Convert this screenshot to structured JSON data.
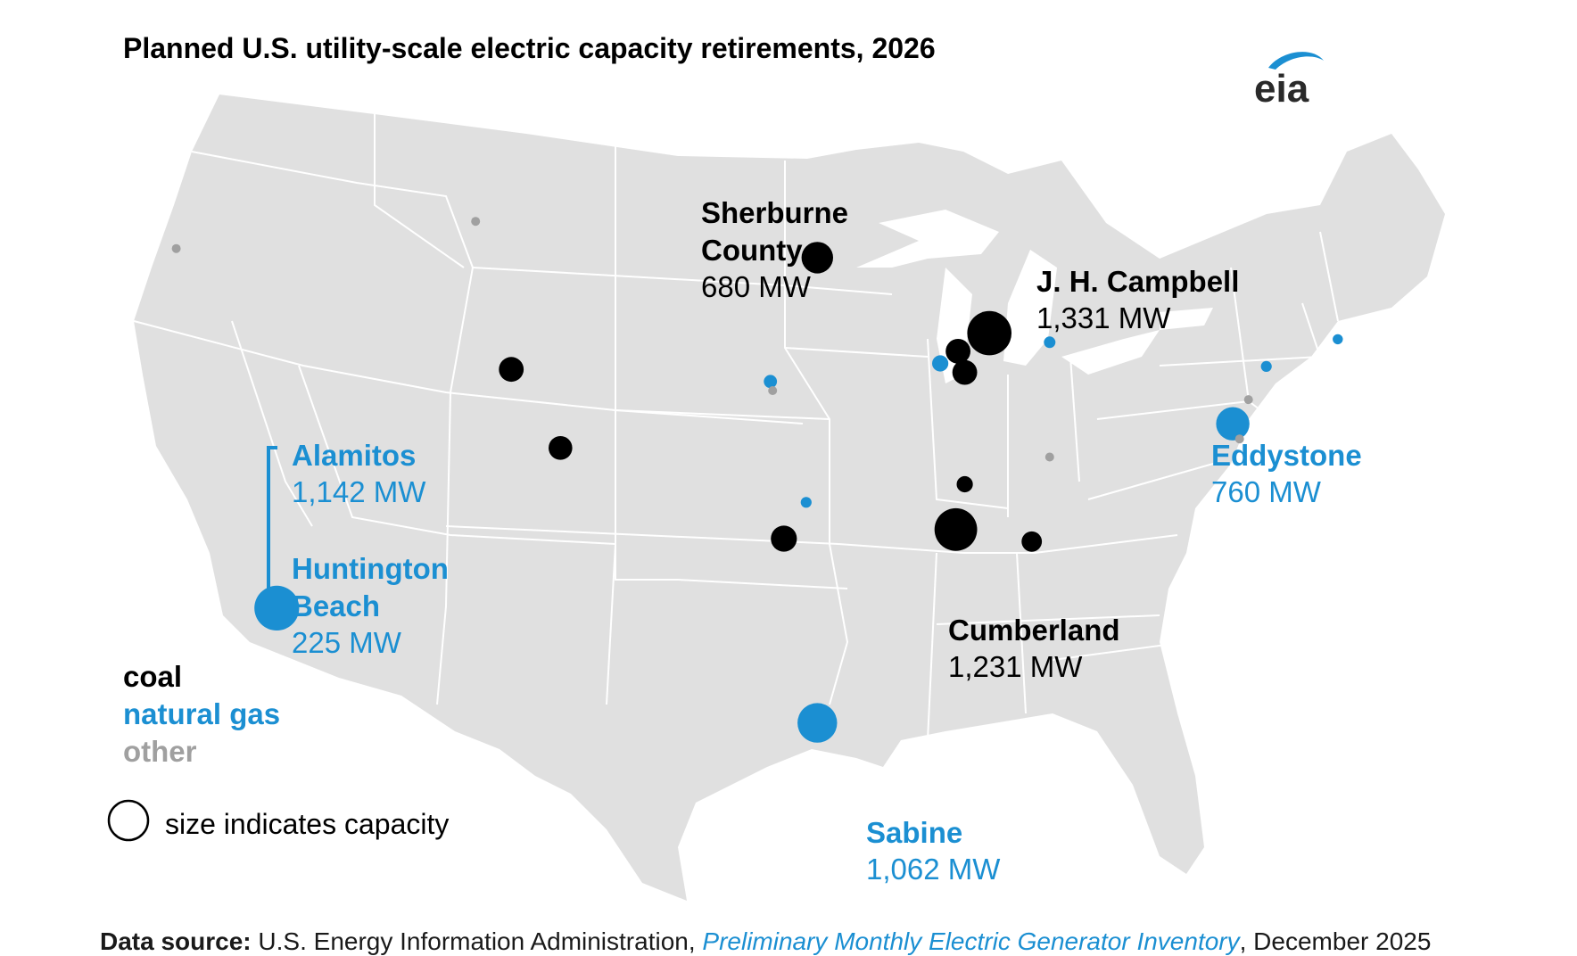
{
  "title": "Planned U.S. utility-scale electric capacity retirements, 2026",
  "logo_text": "eia",
  "colors": {
    "coal": "#000000",
    "natural_gas": "#1b8fd2",
    "other": "#a0a0a0",
    "land": "#e0e0e0",
    "borders": "#ffffff"
  },
  "labels": {
    "sherburne": {
      "name_line1": "Sherburne",
      "name_line2": "County",
      "capacity": "680 MW"
    },
    "campbell": {
      "name": "J. H. Campbell",
      "capacity": "1,331 MW"
    },
    "cumberland": {
      "name": "Cumberland",
      "capacity": "1,231 MW"
    },
    "eddystone": {
      "name": "Eddystone",
      "capacity": "760 MW"
    },
    "sabine": {
      "name": "Sabine",
      "capacity": "1,062 MW"
    },
    "alamitos": {
      "name": "Alamitos",
      "capacity": "1,142 MW"
    },
    "huntington": {
      "name_line1": "Huntington",
      "name_line2": "Beach",
      "capacity": "225 MW"
    }
  },
  "legend": {
    "coal": "coal",
    "natural_gas": "natural gas",
    "other": "other",
    "size_note": "size indicates capacity"
  },
  "source": {
    "label": "Data source:",
    "text_before": "U.S. Energy Information Administration,",
    "link": "Preliminary Monthly Electric Generator Inventory",
    "text_after": ", December 2025"
  },
  "plants": [
    {
      "name": "Sherburne County",
      "fuel": "coal",
      "capacity_mw": 680,
      "lon": -93.9,
      "lat": 45.4
    },
    {
      "name": "J. H. Campbell",
      "fuel": "coal",
      "capacity_mw": 1331,
      "lon": -86.2,
      "lat": 42.9
    },
    {
      "name": "Cumberland",
      "fuel": "coal",
      "capacity_mw": 1231,
      "lon": -87.7,
      "lat": 36.4
    },
    {
      "name": "Eddystone",
      "fuel": "natural gas",
      "capacity_mw": 760,
      "lon": -75.3,
      "lat": 39.9
    },
    {
      "name": "Sabine",
      "fuel": "natural gas",
      "capacity_mw": 1062,
      "lon": -93.9,
      "lat": 30.0
    },
    {
      "name": "Alamitos / Huntington Beach",
      "fuel": "natural gas",
      "capacity_mw": 1367,
      "lon": -118.1,
      "lat": 33.8
    },
    {
      "name": "",
      "fuel": "coal",
      "capacity_mw": 420,
      "lon": -87.6,
      "lat": 42.3
    },
    {
      "name": "",
      "fuel": "coal",
      "capacity_mw": 420,
      "lon": -87.3,
      "lat": 41.6
    },
    {
      "name": "",
      "fuel": "coal",
      "capacity_mw": 420,
      "lon": -107.6,
      "lat": 41.7
    },
    {
      "name": "",
      "fuel": "coal",
      "capacity_mw": 380,
      "lon": -105.4,
      "lat": 39.1
    },
    {
      "name": "",
      "fuel": "coal",
      "capacity_mw": 460,
      "lon": -95.4,
      "lat": 36.1
    },
    {
      "name": "",
      "fuel": "coal",
      "capacity_mw": 180,
      "lon": -87.3,
      "lat": 37.9
    },
    {
      "name": "",
      "fuel": "coal",
      "capacity_mw": 280,
      "lon": -84.3,
      "lat": 36.0
    },
    {
      "name": "",
      "fuel": "natural gas",
      "capacity_mw": 180,
      "lon": -88.4,
      "lat": 41.9
    },
    {
      "name": "",
      "fuel": "natural gas",
      "capacity_mw": 120,
      "lon": -96.0,
      "lat": 41.3
    },
    {
      "name": "",
      "fuel": "natural gas",
      "capacity_mw": 90,
      "lon": -83.5,
      "lat": 42.6
    },
    {
      "name": "",
      "fuel": "natural gas",
      "capacity_mw": 80,
      "lon": -94.4,
      "lat": 37.3
    },
    {
      "name": "",
      "fuel": "natural gas",
      "capacity_mw": 80,
      "lon": -73.8,
      "lat": 41.8
    },
    {
      "name": "",
      "fuel": "natural gas",
      "capacity_mw": 70,
      "lon": -70.6,
      "lat": 42.7
    },
    {
      "name": "",
      "fuel": "other",
      "capacity_mw": 40,
      "lon": -122.6,
      "lat": 45.7
    },
    {
      "name": "",
      "fuel": "other",
      "capacity_mw": 40,
      "lon": -109.2,
      "lat": 46.6
    },
    {
      "name": "",
      "fuel": "other",
      "capacity_mw": 40,
      "lon": -83.5,
      "lat": 38.8
    },
    {
      "name": "",
      "fuel": "other",
      "capacity_mw": 40,
      "lon": -74.6,
      "lat": 40.7
    },
    {
      "name": "",
      "fuel": "other",
      "capacity_mw": 40,
      "lon": -95.9,
      "lat": 41.0
    },
    {
      "name": "",
      "fuel": "other",
      "capacity_mw": 40,
      "lon": -75.0,
      "lat": 39.4
    }
  ]
}
